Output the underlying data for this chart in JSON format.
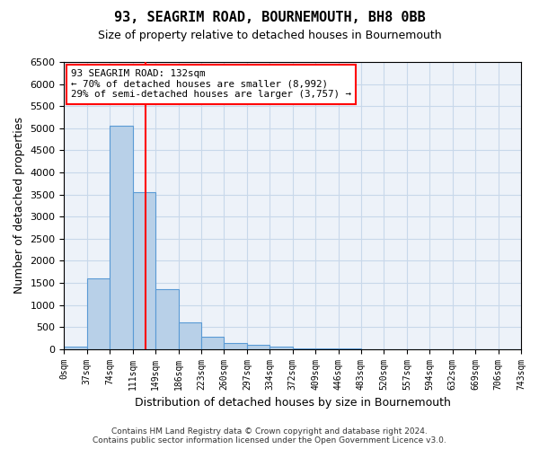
{
  "title": "93, SEAGRIM ROAD, BOURNEMOUTH, BH8 0BB",
  "subtitle": "Size of property relative to detached houses in Bournemouth",
  "xlabel": "Distribution of detached houses by size in Bournemouth",
  "ylabel": "Number of detached properties",
  "footer_line1": "Contains HM Land Registry data © Crown copyright and database right 2024.",
  "footer_line2": "Contains public sector information licensed under the Open Government Licence v3.0.",
  "bin_labels": [
    "0sqm",
    "37sqm",
    "74sqm",
    "111sqm",
    "149sqm",
    "186sqm",
    "223sqm",
    "260sqm",
    "297sqm",
    "334sqm",
    "372sqm",
    "409sqm",
    "446sqm",
    "483sqm",
    "520sqm",
    "557sqm",
    "594sqm",
    "632sqm",
    "669sqm",
    "706sqm",
    "743sqm"
  ],
  "bar_values": [
    50,
    1600,
    5050,
    3550,
    1350,
    600,
    280,
    140,
    100,
    50,
    20,
    10,
    5,
    3,
    2,
    1,
    0,
    0,
    0,
    0
  ],
  "bar_color": "#b8d0e8",
  "bar_edge_color": "#5a9ad5",
  "grid_color": "#c8d8ea",
  "property_label": "93 SEAGRIM ROAD: 132sqm",
  "annotation_line1": "← 70% of detached houses are smaller (8,992)",
  "annotation_line2": "29% of semi-detached houses are larger (3,757) →",
  "vline_color": "red",
  "vline_x": 3.56,
  "ylim": [
    0,
    6500
  ],
  "yticks": [
    0,
    500,
    1000,
    1500,
    2000,
    2500,
    3000,
    3500,
    4000,
    4500,
    5000,
    5500,
    6000,
    6500
  ],
  "figsize": [
    6.0,
    5.0
  ],
  "dpi": 100,
  "background_color": "#ffffff",
  "plot_bg_color": "#edf2f9"
}
